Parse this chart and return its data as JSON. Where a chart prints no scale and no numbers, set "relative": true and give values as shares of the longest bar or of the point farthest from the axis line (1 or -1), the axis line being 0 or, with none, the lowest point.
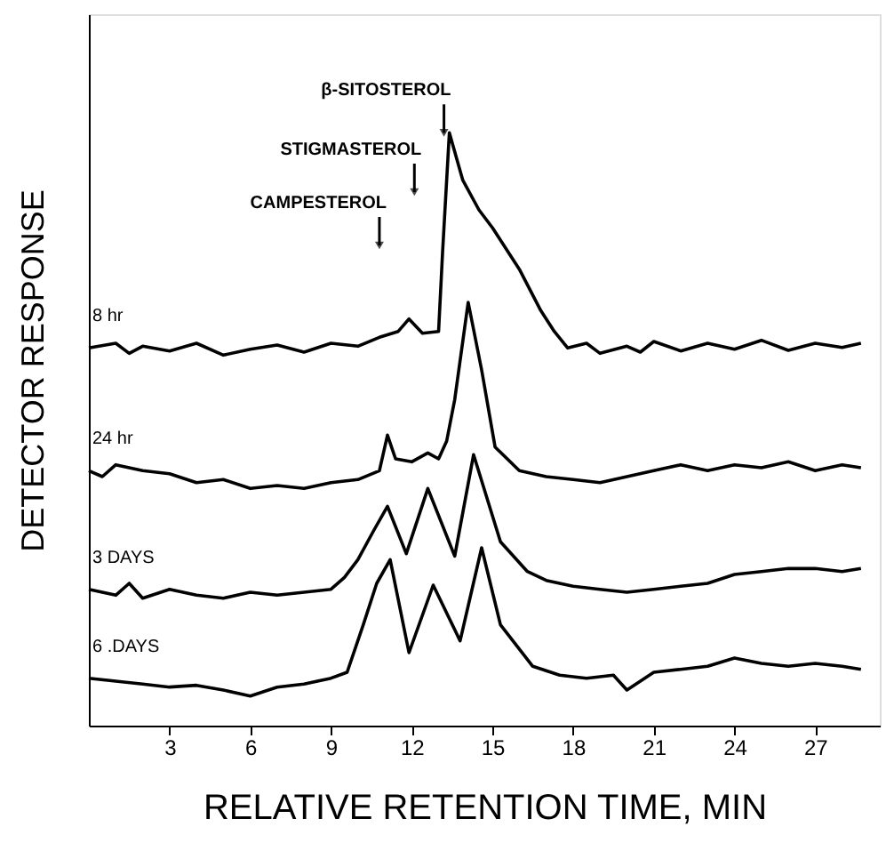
{
  "chart_data": {
    "type": "line",
    "relative": true,
    "xlabel": "RELATIVE RETENTION TIME, MIN",
    "ylabel": "DETECTOR RESPONSE",
    "xlim": [
      0,
      29.4
    ],
    "xticks": [
      3,
      6,
      9,
      12,
      15,
      18,
      21,
      24,
      27
    ],
    "grid": false,
    "legend": false,
    "marker": "none",
    "line_style": "solid",
    "series": [
      {
        "name": "8 hr",
        "color": "#000000",
        "x": [
          0,
          1,
          1.5,
          2,
          3,
          4,
          5,
          6,
          7,
          8,
          9,
          10,
          10.8,
          11.5,
          11.9,
          12.4,
          13.0,
          13.15,
          13.4,
          13.9,
          14.5,
          15.0,
          16.0,
          16.8,
          17.3,
          17.8,
          18.5,
          19,
          20,
          20.5,
          21,
          22,
          23,
          24,
          25,
          26,
          27,
          28,
          28.7
        ],
        "values": [
          0.637,
          0.645,
          0.628,
          0.64,
          0.632,
          0.645,
          0.625,
          0.635,
          0.642,
          0.63,
          0.645,
          0.64,
          0.655,
          0.665,
          0.686,
          0.662,
          0.665,
          0.8,
          1.0,
          0.92,
          0.87,
          0.84,
          0.77,
          0.7,
          0.665,
          0.637,
          0.645,
          0.628,
          0.64,
          0.63,
          0.648,
          0.632,
          0.645,
          0.635,
          0.65,
          0.633,
          0.645,
          0.638,
          0.645
        ]
      },
      {
        "name": "24 hr",
        "color": "#000000",
        "x": [
          0,
          0.5,
          1,
          2,
          3,
          4,
          5,
          6,
          7,
          8,
          9,
          10,
          10.8,
          11.1,
          11.4,
          12,
          12.6,
          13.0,
          13.3,
          13.6,
          14.1,
          14.6,
          15.1,
          16,
          17,
          18,
          19,
          20,
          21,
          22,
          23,
          24,
          25,
          26,
          27,
          28,
          28.7
        ],
        "values": [
          0.43,
          0.42,
          0.44,
          0.43,
          0.425,
          0.41,
          0.415,
          0.4,
          0.405,
          0.4,
          0.41,
          0.415,
          0.43,
          0.49,
          0.45,
          0.445,
          0.46,
          0.45,
          0.48,
          0.55,
          0.714,
          0.6,
          0.47,
          0.43,
          0.42,
          0.415,
          0.41,
          0.42,
          0.43,
          0.44,
          0.43,
          0.44,
          0.435,
          0.445,
          0.43,
          0.44,
          0.435
        ]
      },
      {
        "name": "3  DAYS",
        "color": "#000000",
        "x": [
          0,
          1,
          1.5,
          2,
          3,
          4,
          5,
          6,
          7,
          8,
          9,
          9.5,
          10,
          10.6,
          11.1,
          11.8,
          12.6,
          13.6,
          14.3,
          15.3,
          16.3,
          17,
          18,
          19,
          20,
          21,
          22,
          23,
          24,
          25,
          26,
          27,
          28,
          28.7
        ],
        "values": [
          0.23,
          0.22,
          0.24,
          0.215,
          0.23,
          0.22,
          0.215,
          0.225,
          0.22,
          0.225,
          0.23,
          0.25,
          0.28,
          0.33,
          0.37,
          0.29,
          0.4,
          0.286,
          0.457,
          0.31,
          0.26,
          0.245,
          0.235,
          0.23,
          0.225,
          0.23,
          0.235,
          0.24,
          0.255,
          0.26,
          0.265,
          0.265,
          0.26,
          0.265
        ]
      },
      {
        "name": "6 .DAYS",
        "color": "#000000",
        "x": [
          0,
          1,
          2,
          3,
          4,
          5,
          6,
          7,
          8,
          9,
          9.6,
          10.2,
          10.7,
          11.2,
          11.9,
          12.8,
          13.8,
          14.6,
          15.3,
          16.5,
          17.5,
          18.5,
          19.5,
          20,
          21,
          22,
          23,
          24,
          25,
          26,
          27,
          28,
          28.7
        ],
        "values": [
          0.08,
          0.075,
          0.07,
          0.065,
          0.068,
          0.06,
          0.05,
          0.065,
          0.07,
          0.08,
          0.09,
          0.17,
          0.24,
          0.28,
          0.123,
          0.237,
          0.143,
          0.3,
          0.17,
          0.1,
          0.085,
          0.08,
          0.085,
          0.06,
          0.09,
          0.095,
          0.1,
          0.114,
          0.105,
          0.1,
          0.105,
          0.1,
          0.095
        ]
      }
    ],
    "annotations": [
      {
        "text": "CAMPESTEROL",
        "x": 10.8,
        "y": 0.81
      },
      {
        "text": "STIGMASTEROL",
        "x": 12.1,
        "y": 0.9
      },
      {
        "text": "β-SITOSTEROL",
        "x": 13.2,
        "y": 1.0
      }
    ]
  }
}
